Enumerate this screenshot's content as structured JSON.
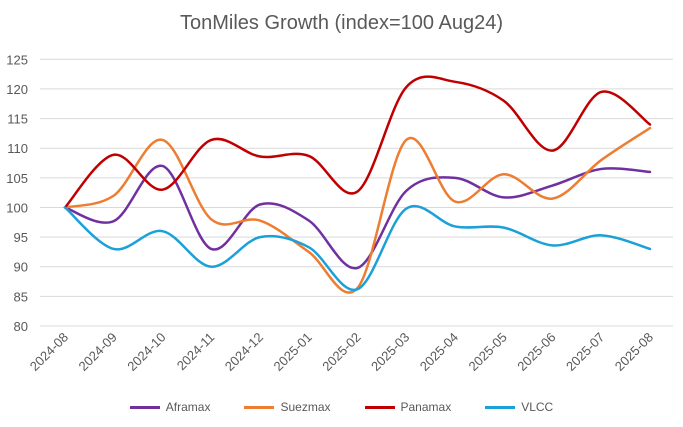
{
  "chart_data": {
    "type": "line",
    "title": "TonMiles Growth (index=100 Aug24)",
    "xlabel": "",
    "ylabel": "",
    "ylim": [
      80,
      125
    ],
    "yticks": [
      "80",
      "85",
      "90",
      "95",
      "100",
      "105",
      "110",
      "115",
      "120",
      "125"
    ],
    "grid": true,
    "smooth": true,
    "legend_position": "bottom",
    "categories": [
      "2024-08",
      "2024-09",
      "2024-10",
      "2024-11",
      "2024-12",
      "2025-01",
      "2025-02",
      "2025-03",
      "2025-04",
      "2025-05",
      "2025-06",
      "2025-07",
      "2025-08"
    ],
    "series": [
      {
        "name": "Aframax",
        "color": "#7030A0",
        "values": [
          100,
          97.7,
          107,
          93,
          100.5,
          97.8,
          89.8,
          102.8,
          105,
          101.7,
          103.7,
          106.5,
          106
        ]
      },
      {
        "name": "Suezmax",
        "color": "#ED7D31",
        "values": [
          100,
          102,
          111.4,
          98,
          97.8,
          92.5,
          86.4,
          111.4,
          101,
          105.6,
          101.5,
          108,
          113.4
        ]
      },
      {
        "name": "Panamax",
        "color": "#C00000",
        "values": [
          100,
          108.9,
          103,
          111.4,
          108.6,
          108.7,
          102.7,
          120.3,
          121.2,
          118,
          109.6,
          119.5,
          114
        ]
      },
      {
        "name": "VLCC",
        "color": "#1BA1D8",
        "values": [
          100,
          93,
          96,
          90,
          95,
          93.3,
          86.2,
          99.8,
          96.8,
          96.6,
          93.6,
          95.3,
          93
        ]
      }
    ]
  }
}
